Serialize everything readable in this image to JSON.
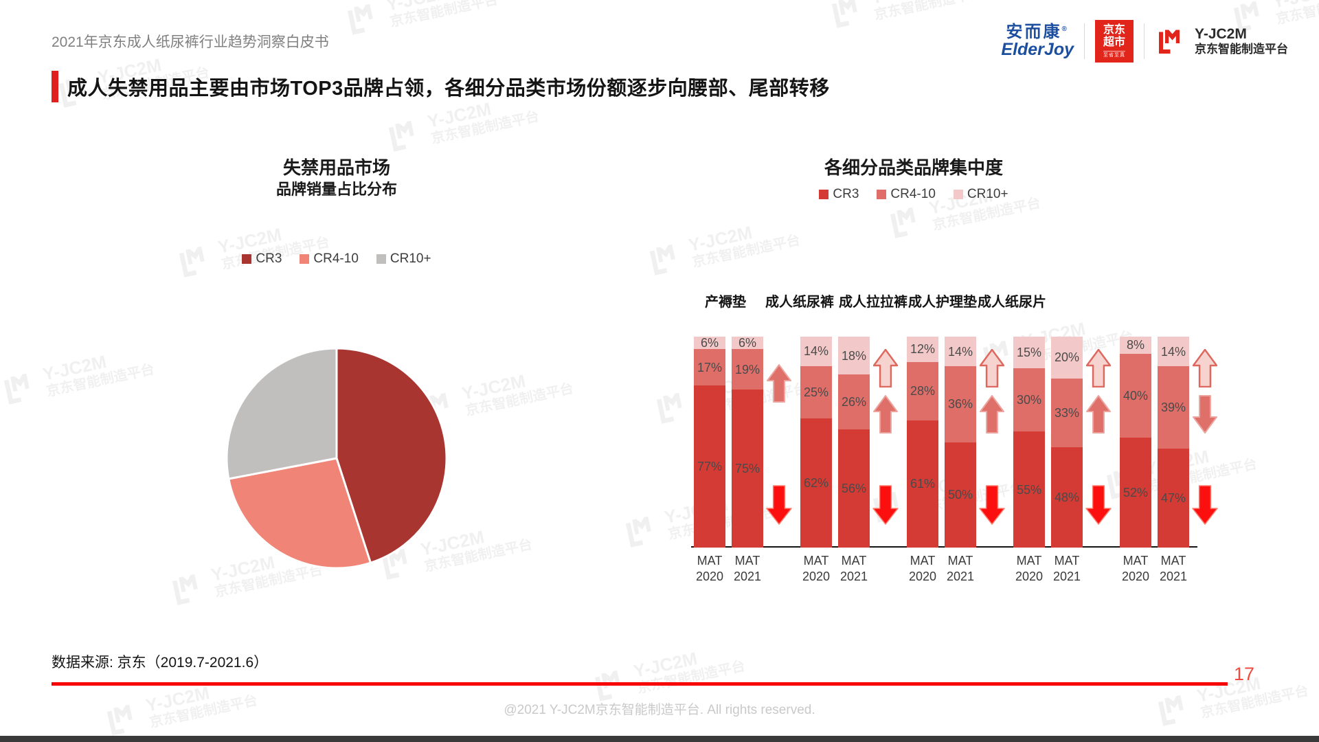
{
  "page": {
    "header_title": "2021年京东成人纸尿裤行业趋势洞察白皮书",
    "slide_title": "成人失禁用品主要由市场TOP3品牌占领，各细分品类市场份额逐步向腰部、尾部转移",
    "source_note": "数据来源: 京东（2019.7-2021.6）",
    "page_number": "17",
    "footer_copyright": "@2021 Y-JC2M京东智能制造平台. All rights reserved.",
    "accent_red": "#e01f1f",
    "rule_red": "#f60000"
  },
  "logos": {
    "elderjoy_cn": "安而康",
    "elderjoy_reg": "®",
    "elderjoy_en": "ElderJoy",
    "jd_line1": "京东",
    "jd_line2": "超市",
    "jd_sub": "至省至真",
    "yjc2m_name": "Y-JC2M",
    "yjc2m_sub": "京东智能制造平台"
  },
  "watermark": {
    "line1": "Y-JC2M",
    "line2": "京东智能制造平台"
  },
  "chart_data": [
    {
      "type": "pie",
      "title": "失禁用品市场",
      "subtitle": "品牌销量占比分布",
      "legend": [
        {
          "name": "CR3",
          "color": "#a93531"
        },
        {
          "name": "CR4-10",
          "color": "#f08577"
        },
        {
          "name": "CR10+",
          "color": "#c0bfbe"
        }
      ],
      "slices": [
        {
          "name": "CR3",
          "value": 45
        },
        {
          "name": "CR4-10",
          "value": 27
        },
        {
          "name": "CR10+",
          "value": 28
        }
      ],
      "data_labels_shown": false,
      "values_estimated_from_angles": true,
      "legend_position": "top"
    },
    {
      "type": "bar",
      "stacked": true,
      "title": "各细分品类品牌集中度",
      "unit": "%",
      "ylim": [
        0,
        100
      ],
      "legend_position": "top",
      "legend": [
        {
          "name": "CR3",
          "color": "#d33b34"
        },
        {
          "name": "CR4-10",
          "color": "#df6e68"
        },
        {
          "name": "CR10+",
          "color": "#f2c9c8"
        }
      ],
      "categories": [
        "产褥垫",
        "成人纸尿裤",
        "成人拉拉裤",
        "成人护理垫",
        "成人纸尿片"
      ],
      "x_labels": [
        "MAT 2020",
        "MAT 2021"
      ],
      "groups": [
        {
          "category": "产褥垫",
          "bars": [
            {
              "x": "MAT 2020",
              "values": {
                "CR3": 77,
                "CR4-10": 17,
                "CR10+": 6
              }
            },
            {
              "x": "MAT 2021",
              "values": {
                "CR3": 75,
                "CR4-10": 19,
                "CR10+": 6
              }
            }
          ],
          "trend_arrows": [
            {
              "direction": "up",
              "tone": "mid",
              "slot": "upper"
            },
            {
              "direction": "down",
              "tone": "strong",
              "slot": "lower"
            }
          ]
        },
        {
          "category": "成人纸尿裤",
          "bars": [
            {
              "x": "MAT 2020",
              "values": {
                "CR3": 62,
                "CR4-10": 25,
                "CR10+": 14
              }
            },
            {
              "x": "MAT 2021",
              "values": {
                "CR3": 56,
                "CR4-10": 26,
                "CR10+": 18
              }
            }
          ],
          "trend_arrows": [
            {
              "direction": "up",
              "tone": "light",
              "slot": "top"
            },
            {
              "direction": "up",
              "tone": "mid",
              "slot": "middle"
            },
            {
              "direction": "down",
              "tone": "strong",
              "slot": "lower"
            }
          ]
        },
        {
          "category": "成人拉拉裤",
          "bars": [
            {
              "x": "MAT 2020",
              "values": {
                "CR3": 61,
                "CR4-10": 28,
                "CR10+": 12
              }
            },
            {
              "x": "MAT 2021",
              "values": {
                "CR3": 50,
                "CR4-10": 36,
                "CR10+": 14
              }
            }
          ],
          "trend_arrows": [
            {
              "direction": "up",
              "tone": "light",
              "slot": "top"
            },
            {
              "direction": "up",
              "tone": "mid",
              "slot": "middle"
            },
            {
              "direction": "down",
              "tone": "strong",
              "slot": "lower"
            }
          ]
        },
        {
          "category": "成人护理垫",
          "bars": [
            {
              "x": "MAT 2020",
              "values": {
                "CR3": 55,
                "CR4-10": 30,
                "CR10+": 15
              }
            },
            {
              "x": "MAT 2021",
              "values": {
                "CR3": 48,
                "CR4-10": 33,
                "CR10+": 20
              }
            }
          ],
          "trend_arrows": [
            {
              "direction": "up",
              "tone": "light",
              "slot": "top"
            },
            {
              "direction": "up",
              "tone": "mid",
              "slot": "middle"
            },
            {
              "direction": "down",
              "tone": "strong",
              "slot": "lower"
            }
          ]
        },
        {
          "category": "成人纸尿片",
          "bars": [
            {
              "x": "MAT 2020",
              "values": {
                "CR3": 52,
                "CR4-10": 40,
                "CR10+": 8
              }
            },
            {
              "x": "MAT 2021",
              "values": {
                "CR3": 47,
                "CR4-10": 39,
                "CR10+": 14
              }
            }
          ],
          "trend_arrows": [
            {
              "direction": "up",
              "tone": "light",
              "slot": "top"
            },
            {
              "direction": "down",
              "tone": "mid",
              "slot": "middle"
            },
            {
              "direction": "down",
              "tone": "strong",
              "slot": "lower"
            }
          ]
        }
      ]
    }
  ]
}
